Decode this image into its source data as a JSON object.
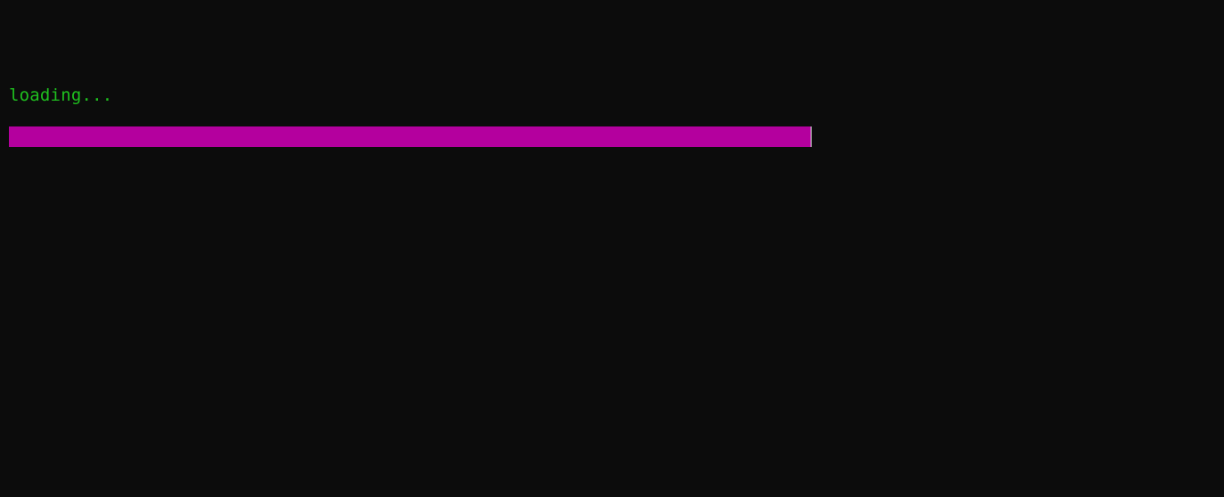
{
  "terminal": {
    "status_text": "loading...",
    "progress_fraction": 1.0,
    "colors": {
      "background": "#0c0c0c",
      "status_text": "#1fc01f",
      "progress_bar": "#b4009e",
      "cursor": "#f2f2f2"
    }
  }
}
